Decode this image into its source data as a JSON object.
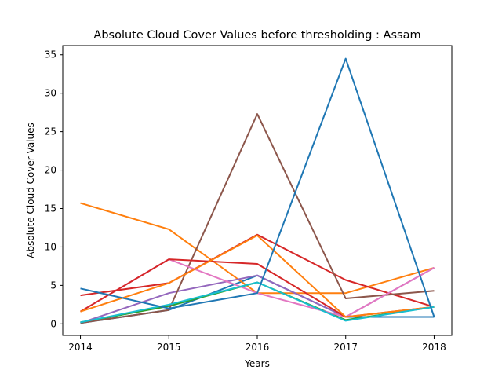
{
  "chart_data": {
    "type": "line",
    "title": "Absolute Cloud Cover Values before thresholding : Assam",
    "xlabel": "Years",
    "ylabel": "Absolute Cloud Cover Values",
    "x": [
      2014,
      2015,
      2016,
      2017,
      2018
    ],
    "xticks": [
      "2014",
      "2015",
      "2016",
      "2017",
      "2018"
    ],
    "yticks": [
      "0",
      "5",
      "10",
      "15",
      "20",
      "25",
      "30",
      "35"
    ],
    "ylim": [
      -1.5,
      36.2
    ],
    "xlim": [
      2013.8,
      2018.2
    ],
    "grid": false,
    "legend": false,
    "series": [
      {
        "color": "#1f77b4",
        "values": [
          0.1,
          1.8,
          6.3,
          0.9,
          0.9
        ]
      },
      {
        "color": "#ff7f0e",
        "values": [
          15.7,
          12.3,
          4.0,
          4.0,
          7.3
        ]
      },
      {
        "color": "#2ca02c",
        "values": [
          0.2,
          2.3,
          5.4,
          0.5,
          2.2
        ]
      },
      {
        "color": "#d62728",
        "values": [
          3.7,
          5.3,
          11.6,
          5.7,
          2.2
        ]
      },
      {
        "color": "#9467bd",
        "values": [
          0.1,
          4.0,
          6.3,
          0.9,
          7.3
        ]
      },
      {
        "color": "#8c564b",
        "values": [
          0.1,
          1.8,
          27.3,
          3.3,
          4.3
        ]
      },
      {
        "color": "#e377c2",
        "values": [
          1.6,
          8.4,
          4.0,
          0.9,
          7.3
        ]
      },
      {
        "color": "#d62728",
        "values": [
          1.6,
          8.4,
          7.8,
          0.9,
          2.2
        ]
      },
      {
        "color": "#ff7f0e",
        "values": [
          1.6,
          5.3,
          11.5,
          0.9,
          2.2
        ]
      },
      {
        "color": "#17becf",
        "values": [
          0.2,
          2.5,
          5.4,
          0.4,
          2.2
        ]
      },
      {
        "color": "#1f77b4",
        "values": [
          4.6,
          2.0,
          4.0,
          34.5,
          0.9
        ]
      }
    ]
  }
}
